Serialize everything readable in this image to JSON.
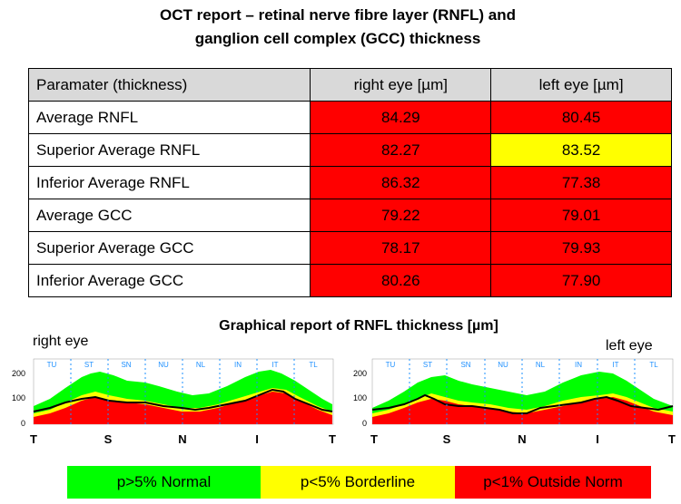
{
  "title": {
    "line1": "OCT report –  retinal nerve fibre layer (RNFL) and",
    "line2": "ganglion cell complex (GCC) thickness"
  },
  "table": {
    "headers": [
      "Paramater (thickness)",
      "right eye [µm]",
      "left eye [µm]"
    ],
    "rows": [
      {
        "name": "Average RNFL",
        "right": "84.29",
        "left": "80.45",
        "right_status": "red",
        "left_status": "red"
      },
      {
        "name": "Superior Average RNFL",
        "right": "82.27",
        "left": "83.52",
        "right_status": "red",
        "left_status": "yellow"
      },
      {
        "name": "Inferior Average RNFL",
        "right": "86.32",
        "left": "77.38",
        "right_status": "red",
        "left_status": "red"
      },
      {
        "name": "Average GCC",
        "right": "79.22",
        "left": "79.01",
        "right_status": "red",
        "left_status": "red"
      },
      {
        "name": "Superior Average GCC",
        "right": "78.17",
        "left": "79.93",
        "right_status": "red",
        "left_status": "red"
      },
      {
        "name": "Inferior Average GCC",
        "right": "80.26",
        "left": "77.90",
        "right_status": "red",
        "left_status": "red"
      }
    ]
  },
  "graph": {
    "title": "Graphical report of RNFL thickness [µm]",
    "right_label": "right eye",
    "left_label": "left eye",
    "sector_labels": [
      "TU",
      "ST",
      "SN",
      "NU",
      "NL",
      "IN",
      "IT",
      "TL"
    ],
    "x_labels": [
      "T",
      "S",
      "N",
      "I",
      "T"
    ],
    "y_ticks": [
      "200",
      "100",
      "0"
    ]
  },
  "legend": [
    {
      "label": "p>5% Normal",
      "color": "#00ff00"
    },
    {
      "label": "p<5% Borderline",
      "color": "#ffff00"
    },
    {
      "label": "p<1% Outside Norm",
      "color": "#ff0000"
    }
  ],
  "colors": {
    "red": "#ff0000",
    "yellow": "#ffff00",
    "green": "#00ff00",
    "header": "#d9d9d9"
  }
}
